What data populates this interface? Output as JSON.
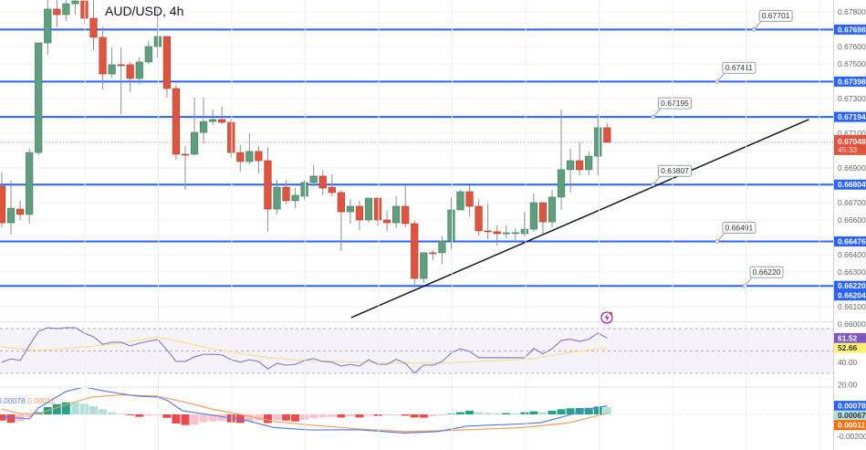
{
  "header": {
    "title": "AUD/USD, 4h"
  },
  "colors": {
    "up": "#5f9f7e",
    "down": "#e0533d",
    "level_line": "#2962ff",
    "trendline": "#131722",
    "rsi": "#8c7fcf",
    "rsi_ma": "#f2e08a",
    "macd": "#5b7ee5",
    "signal": "#f0a060",
    "hist_up_strong": "#26a08a",
    "hist_up_weak": "#b2dfd6",
    "hist_down_strong": "#f04848",
    "hist_down_weak": "#fbc4cc"
  },
  "chart_data": [
    {
      "type": "candlestick",
      "title": "AUD/USD, 4h",
      "ohlc": [
        [
          0.66795,
          0.66874,
          0.66558,
          0.66584
        ],
        [
          0.66584,
          0.66826,
          0.66516,
          0.66668
        ],
        [
          0.66663,
          0.66711,
          0.666,
          0.66632
        ],
        [
          0.66632,
          0.67011,
          0.66579,
          0.66989
        ],
        [
          0.66989,
          0.67621,
          0.66974,
          0.67621
        ],
        [
          0.67621,
          0.67868,
          0.67553,
          0.67816
        ],
        [
          0.67816,
          0.67868,
          0.67711,
          0.67784
        ],
        [
          0.67784,
          0.67868,
          0.67747,
          0.67847
        ],
        [
          0.67847,
          0.67868,
          0.67784,
          0.67863
        ],
        [
          0.67863,
          0.67868,
          0.67732,
          0.67763
        ],
        [
          0.67763,
          0.67868,
          0.67579,
          0.67653
        ],
        [
          0.67653,
          0.67711,
          0.67353,
          0.67442
        ],
        [
          0.67442,
          0.67595,
          0.67421,
          0.67495
        ],
        [
          0.67495,
          0.67595,
          0.67211,
          0.67494
        ],
        [
          0.67495,
          0.67511,
          0.67337,
          0.67416
        ],
        [
          0.67416,
          0.67537,
          0.67384,
          0.67511
        ],
        [
          0.67511,
          0.67632,
          0.675,
          0.676
        ],
        [
          0.676,
          0.67816,
          0.67537,
          0.67658
        ],
        [
          0.67658,
          0.67658,
          0.67305,
          0.67358
        ],
        [
          0.67358,
          0.67379,
          0.66947,
          0.66979
        ],
        [
          0.66979,
          0.67026,
          0.66774,
          0.66974
        ],
        [
          0.66979,
          0.67305,
          0.66974,
          0.67105
        ],
        [
          0.67105,
          0.67305,
          0.67042,
          0.67168
        ],
        [
          0.67168,
          0.67237,
          0.67147,
          0.67179
        ],
        [
          0.67179,
          0.67253,
          0.67153,
          0.67163
        ],
        [
          0.67163,
          0.67184,
          0.66958,
          0.66989
        ],
        [
          0.66989,
          0.67032,
          0.66879,
          0.66937
        ],
        [
          0.66937,
          0.671,
          0.66921,
          0.66995
        ],
        [
          0.66995,
          0.67026,
          0.66868,
          0.66942
        ],
        [
          0.66942,
          0.67021,
          0.66532,
          0.66663
        ],
        [
          0.66663,
          0.66832,
          0.66632,
          0.66789
        ],
        [
          0.66789,
          0.66832,
          0.66689,
          0.66711
        ],
        [
          0.66711,
          0.66784,
          0.66668,
          0.66742
        ],
        [
          0.66737,
          0.66832,
          0.66716,
          0.66816
        ],
        [
          0.66816,
          0.66916,
          0.66795,
          0.66853
        ],
        [
          0.66853,
          0.66884,
          0.66742,
          0.66784
        ],
        [
          0.66789,
          0.66863,
          0.66737,
          0.66758
        ],
        [
          0.66758,
          0.66774,
          0.66421,
          0.66647
        ],
        [
          0.66647,
          0.66721,
          0.66579,
          0.66679
        ],
        [
          0.66679,
          0.66711,
          0.66542,
          0.666
        ],
        [
          0.666,
          0.66726,
          0.66584,
          0.66726
        ],
        [
          0.66726,
          0.66726,
          0.66568,
          0.666
        ],
        [
          0.666,
          0.66653,
          0.66532,
          0.66584
        ],
        [
          0.66584,
          0.66737,
          0.66553,
          0.66679
        ],
        [
          0.66679,
          0.668,
          0.66558,
          0.66579
        ],
        [
          0.66579,
          0.66595,
          0.66211,
          0.66263
        ],
        [
          0.66263,
          0.66411,
          0.66237,
          0.66411
        ],
        [
          0.66411,
          0.66426,
          0.66368,
          0.6641
        ],
        [
          0.66411,
          0.66505,
          0.66347,
          0.66479
        ],
        [
          0.66479,
          0.66732,
          0.66432,
          0.66658
        ],
        [
          0.66658,
          0.66774,
          0.66658,
          0.66763
        ],
        [
          0.66763,
          0.668,
          0.66621,
          0.66679
        ],
        [
          0.66679,
          0.66721,
          0.66511,
          0.66537
        ],
        [
          0.66537,
          0.66695,
          0.66489,
          0.66536
        ],
        [
          0.66532,
          0.66568,
          0.66453,
          0.66521
        ],
        [
          0.66526,
          0.66568,
          0.66495,
          0.66526
        ],
        [
          0.66526,
          0.66553,
          0.66484,
          0.66527
        ],
        [
          0.66521,
          0.66647,
          0.66505,
          0.66547
        ],
        [
          0.66547,
          0.66753,
          0.66532,
          0.667
        ],
        [
          0.667,
          0.667,
          0.66521,
          0.66589
        ],
        [
          0.66589,
          0.66774,
          0.66558,
          0.66732
        ],
        [
          0.66732,
          0.67237,
          0.66658,
          0.6689
        ],
        [
          0.6689,
          0.67011,
          0.66758,
          0.66942
        ],
        [
          0.66942,
          0.67048,
          0.66858,
          0.6689
        ],
        [
          0.6689,
          0.66995,
          0.66858,
          0.66968
        ],
        [
          0.66968,
          0.67211,
          0.66858,
          0.67132
        ],
        [
          0.67132,
          0.67158,
          0.67048,
          0.67048
        ]
      ],
      "ylim": [
        0.66,
        0.67868
      ],
      "grid": true,
      "price_ticks": [
        "0.67800",
        "0.67600",
        "0.67500",
        "0.67300",
        "0.67100",
        "0.66900",
        "0.66700",
        "0.66600",
        "0.66400",
        "0.66300",
        "0.66100",
        "0.66000"
      ],
      "horizontal_levels": [
        {
          "price": 0.67698,
          "axis_label": "0.67698",
          "callout": "0.67701",
          "callout_bar": 82
        },
        {
          "price": 0.67398,
          "axis_label": "0.67398",
          "callout": "0.67411",
          "callout_bar": 78
        },
        {
          "price": 0.67194,
          "axis_label": "0.67194",
          "callout": "0.67195",
          "callout_bar": 71
        },
        {
          "price": 0.66804,
          "axis_label": "0.66804",
          "callout": "0.66807",
          "callout_bar": 71
        },
        {
          "price": 0.66476,
          "axis_label": "0.66476",
          "callout": "0.66491",
          "callout_bar": 78
        },
        {
          "price": 0.6622,
          "axis_label": "0.66220",
          "callout": "0.66220",
          "callout_bar": 81
        }
      ],
      "extra_axis_label": "0.66204",
      "trendline": [
        [
          38.1,
          0.66037
        ],
        [
          88.0,
          0.6718
        ]
      ],
      "current_price": {
        "value": 0.67048,
        "label": "0.67048",
        "countdown": "45:33"
      }
    },
    {
      "type": "line",
      "name": "RSI",
      "ylim": [
        0,
        100
      ],
      "bands": [
        30,
        50,
        70
      ],
      "ticks": [
        "40.00",
        "20.00"
      ],
      "rsi": [
        39.8,
        43,
        41.5,
        55,
        67.5,
        70.8,
        70,
        70.8,
        70.8,
        66,
        62.6,
        56,
        57.8,
        57.8,
        54.5,
        57,
        58.6,
        60.2,
        51,
        40.6,
        40.6,
        44.7,
        47,
        47,
        46.5,
        42.2,
        40,
        42.2,
        40.6,
        34,
        39,
        37.3,
        38,
        41.4,
        43.3,
        40.6,
        40,
        36.5,
        38,
        36.5,
        42.2,
        38,
        38,
        42.5,
        39,
        30.3,
        37.3,
        37.3,
        40.6,
        48.2,
        52,
        49.6,
        44,
        44,
        44,
        44,
        44,
        44,
        52.3,
        47.4,
        52,
        59.4,
        60.5,
        58.6,
        60.5,
        66,
        61.52
      ],
      "rsi_ma": [
        [
          0,
          53.7
        ],
        [
          4,
          50.4
        ],
        [
          8,
          52.8
        ],
        [
          13,
          57
        ],
        [
          17,
          62.6
        ],
        [
          23,
          52
        ],
        [
          29,
          44
        ],
        [
          33,
          41.4
        ],
        [
          43,
          39
        ],
        [
          49,
          39.4
        ],
        [
          58,
          43
        ],
        [
          62,
          48.8
        ],
        [
          66,
          52.66
        ]
      ],
      "last_labels": {
        "rsi": "61.52",
        "ma": "52.66"
      }
    },
    {
      "type": "bar+line",
      "name": "MACD",
      "histogram": [
        -0.00056,
        -0.00075,
        -0.00064,
        -0.00025,
        0.0002,
        0.00067,
        0.00094,
        0.00111,
        0.00108,
        0.00097,
        0.00075,
        0.00047,
        0.0002,
        6e-05,
        -8e-05,
        -0.00022,
        -0.00012,
        -8e-05,
        -0.00031,
        -0.00083,
        -0.00097,
        -0.00094,
        -0.00072,
        -0.00064,
        -0.0006,
        -0.00072,
        -0.00078,
        -0.00064,
        -0.00056,
        -0.00078,
        -0.00053,
        -0.00056,
        -0.00064,
        -0.0005,
        -0.00036,
        -0.00025,
        -0.00023,
        -0.00028,
        -0.00017,
        -0.00028,
        -0.00012,
        -0.00014,
        -8e-05,
        -7e-05,
        -0.00012,
        -0.00028,
        -0.0003,
        -0.00017,
        -8e-05,
        6e-05,
        0.0002,
        0.00033,
        0.0002,
        0.00014,
        0.00011,
        0.00012,
        0.00011,
        0.0002,
        0.00028,
        0.0002,
        0.00033,
        0.00047,
        0.00056,
        0.00058,
        0.0006,
        0.00072,
        0.00067
      ],
      "macd": [
        [
          0,
          -0.00022
        ],
        [
          3,
          -0.0004
        ],
        [
          4,
          0.0006
        ],
        [
          7,
          0.0021
        ],
        [
          9,
          0.0025
        ],
        [
          11.4,
          0.0021
        ],
        [
          14.7,
          0.00167
        ],
        [
          17,
          0.00158
        ],
        [
          18,
          0.0013
        ],
        [
          19.7,
          0.00033
        ],
        [
          23,
          -8e-05
        ],
        [
          26.4,
          -0.0005
        ],
        [
          29.7,
          -0.0012
        ],
        [
          33.6,
          -0.00142
        ],
        [
          38.9,
          -0.0014
        ],
        [
          43.9,
          -0.0017
        ],
        [
          47.6,
          -0.00156
        ],
        [
          50.8,
          -0.00106
        ],
        [
          56.8,
          -0.00086
        ],
        [
          58.8,
          -0.00075
        ],
        [
          61.8,
          -8e-05
        ],
        [
          63.8,
          0.00047
        ],
        [
          66,
          0.00078
        ]
      ],
      "signal": [
        [
          0,
          0.00047
        ],
        [
          2,
          8e-05
        ],
        [
          4,
          8e-05
        ],
        [
          7,
          0.00089
        ],
        [
          9.8,
          0.00158
        ],
        [
          13,
          0.00178
        ],
        [
          17,
          0.00167
        ],
        [
          19.7,
          0.00117
        ],
        [
          23,
          0.00047
        ],
        [
          26.4,
          -8e-05
        ],
        [
          29.7,
          -0.00064
        ],
        [
          33,
          -0.00092
        ],
        [
          38.9,
          -0.00133
        ],
        [
          43.9,
          -0.00156
        ],
        [
          48.9,
          -0.00147
        ],
        [
          56.8,
          -0.0012
        ],
        [
          61.8,
          -0.00078
        ],
        [
          66,
          0.00011
        ]
      ],
      "ticks": [
        "-0.00200"
      ],
      "last_labels": {
        "macd": "0.00078",
        "histogram": "0.00067",
        "signal": "0.00011"
      },
      "legend": {
        "macd": "0.00078",
        "signal": "0.00011"
      }
    }
  ],
  "icons": {
    "alert": "lightning-bolt-icon"
  }
}
